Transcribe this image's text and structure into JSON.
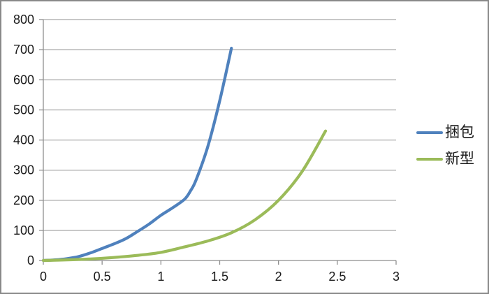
{
  "window": {
    "background": "#ffffff",
    "border_color": "#898989"
  },
  "chart_data": {
    "type": "line",
    "title": "",
    "xlabel": "",
    "ylabel": "",
    "xlim": [
      0,
      3
    ],
    "ylim": [
      0,
      800
    ],
    "grid": true,
    "legend_position": "right",
    "x_ticks": [
      0,
      0.5,
      1,
      1.5,
      2,
      2.5,
      3
    ],
    "x_tick_labels": [
      "0",
      "0.5",
      "1",
      "1.5",
      "2",
      "2.5",
      "3"
    ],
    "y_ticks": [
      0,
      100,
      200,
      300,
      400,
      500,
      600,
      700,
      800
    ],
    "y_tick_labels": [
      "0",
      "100",
      "200",
      "300",
      "400",
      "500",
      "600",
      "700",
      "800"
    ],
    "gridline_color": "#A6A6A6",
    "axis_color": "#8E8E8E",
    "tick_label_color": "#1a1a1a",
    "series": [
      {
        "name": "捆包",
        "color": "#4F81BD",
        "points": [
          [
            0,
            0
          ],
          [
            0.1,
            2
          ],
          [
            0.2,
            6
          ],
          [
            0.3,
            13
          ],
          [
            0.4,
            25
          ],
          [
            0.5,
            40
          ],
          [
            0.6,
            55
          ],
          [
            0.7,
            72
          ],
          [
            0.8,
            96
          ],
          [
            0.9,
            121
          ],
          [
            1.0,
            150
          ],
          [
            1.1,
            175
          ],
          [
            1.2,
            203
          ],
          [
            1.25,
            230
          ],
          [
            1.3,
            268
          ],
          [
            1.4,
            380
          ],
          [
            1.5,
            530
          ],
          [
            1.6,
            705
          ]
        ]
      },
      {
        "name": "新型",
        "color": "#9BBB59",
        "points": [
          [
            0,
            0
          ],
          [
            0.2,
            2
          ],
          [
            0.4,
            5
          ],
          [
            0.6,
            10
          ],
          [
            0.8,
            17
          ],
          [
            1.0,
            27
          ],
          [
            1.2,
            45
          ],
          [
            1.4,
            65
          ],
          [
            1.6,
            92
          ],
          [
            1.8,
            135
          ],
          [
            2.0,
            200
          ],
          [
            2.2,
            295
          ],
          [
            2.4,
            430
          ]
        ]
      }
    ]
  }
}
